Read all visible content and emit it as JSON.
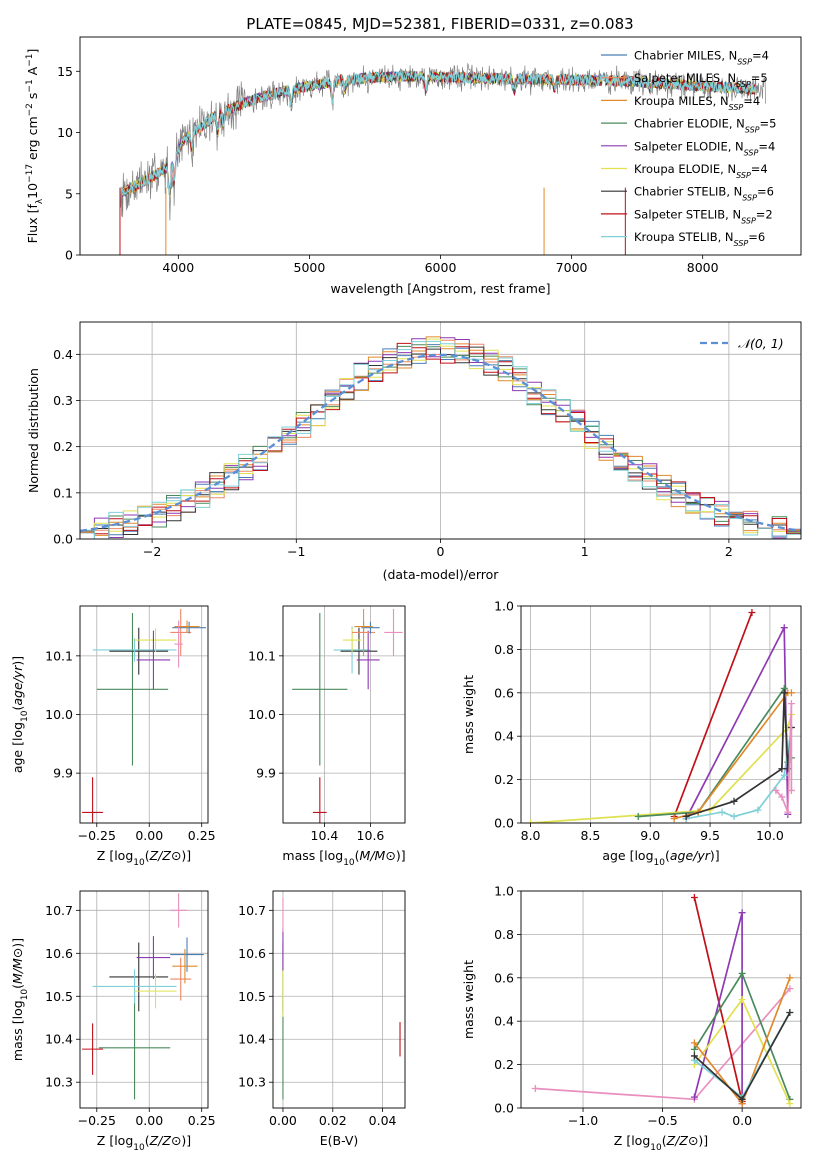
{
  "figure_title": "PLATE=0845, MJD=52381, FIBERID=0331, z=0.083",
  "chart_data": [
    {
      "id": "spectrum",
      "type": "line",
      "title": "PLATE=0845, MJD=52381, FIBERID=0331, z=0.083",
      "xlabel": "wavelength [Angstrom, rest frame]",
      "ylabel": "Flux [f_λ10^{-17} erg cm^{-2} s^{-1} A^{-1}]",
      "xlim": [
        3250,
        8750
      ],
      "ylim": [
        0,
        17.8
      ],
      "xticks": [
        4000,
        5000,
        6000,
        7000,
        8000
      ],
      "yticks": [
        0,
        5,
        10,
        15
      ],
      "grid": false,
      "legend_position": "right",
      "continuum_knots": {
        "x": [
          3550,
          3700,
          3900,
          4050,
          4300,
          4600,
          4900,
          5200,
          5500,
          5800,
          6100,
          6500,
          7000,
          7400,
          7700,
          8000,
          8300,
          8500
        ],
        "y": [
          5.0,
          5.8,
          7.0,
          9.5,
          11.5,
          12.8,
          13.6,
          14.2,
          14.5,
          14.6,
          14.5,
          14.4,
          14.3,
          14.2,
          14.0,
          13.8,
          13.6,
          13.5
        ]
      },
      "series": [
        {
          "name": "Chabrier MILES, N_{SSP}=4",
          "color": "#4a7fb5"
        },
        {
          "name": "Salpeter MILES, N_{SSP}=5",
          "color": "#ee8866"
        },
        {
          "name": "Kroupa MILES, N_{SSP}=4",
          "color": "#e08a2c"
        },
        {
          "name": "Chabrier ELODIE, N_{SSP}=5",
          "color": "#4a8a5c"
        },
        {
          "name": "Salpeter ELODIE, N_{SSP}=4",
          "color": "#8e3ab3"
        },
        {
          "name": "Kroupa ELODIE, N_{SSP}=4",
          "color": "#e0e050"
        },
        {
          "name": "Chabrier STELIB, N_{SSP}=6",
          "color": "#333333"
        },
        {
          "name": "Salpeter STELIB, N_{SSP}=2",
          "color": "#c0101a"
        },
        {
          "name": "Kroupa STELIB, N_{SSP}=6",
          "color": "#7fd0d8"
        }
      ]
    },
    {
      "id": "residuals",
      "type": "step",
      "xlabel": "(data-model)/error",
      "ylabel": "Normed distribution",
      "xlim": [
        -2.5,
        2.5
      ],
      "ylim": [
        0,
        0.47
      ],
      "xticks": [
        -2,
        -1,
        0,
        1,
        2
      ],
      "yticks": [
        0.0,
        0.1,
        0.2,
        0.3,
        0.4
      ],
      "grid": true,
      "legend_position": "top-right",
      "gaussian_label": "𝒩(0, 1)",
      "gaussian_color": "#5b8fd6",
      "bin_width": 0.1
    },
    {
      "id": "age_vs_Z",
      "type": "errorbar",
      "xlabel": "Z [log10(Z/Z⊙)]",
      "ylabel": "age  [log10(age/yr)]",
      "xlim": [
        -0.33,
        0.28
      ],
      "ylim": [
        9.815,
        10.185
      ],
      "xticks": [
        -0.25,
        0.0,
        0.25
      ],
      "yticks": [
        9.9,
        10.0,
        10.1
      ],
      "grid": true,
      "points": [
        {
          "x": -0.27,
          "y": 9.833,
          "xerr": 0.05,
          "yerr": 0.06,
          "color": "#c0101a"
        },
        {
          "x": -0.08,
          "y": 10.043,
          "xerr": 0.17,
          "yerr": 0.13,
          "color": "#4a8a5c"
        },
        {
          "x": -0.05,
          "y": 10.108,
          "xerr": 0.14,
          "yerr": 0.04,
          "color": "#333333"
        },
        {
          "x": -0.07,
          "y": 10.11,
          "xerr": 0.2,
          "yerr": 0.02,
          "color": "#7fd0d8"
        },
        {
          "x": 0.03,
          "y": 10.127,
          "xerr": 0.1,
          "yerr": 0.02,
          "color": "#e0e050"
        },
        {
          "x": 0.02,
          "y": 10.093,
          "xerr": 0.08,
          "yerr": 0.05,
          "color": "#8e3ab3"
        },
        {
          "x": 0.15,
          "y": 10.14,
          "xerr": 0.05,
          "yerr": 0.04,
          "color": "#ee8866"
        },
        {
          "x": 0.19,
          "y": 10.148,
          "xerr": 0.08,
          "yerr": 0.01,
          "color": "#4a7fb5"
        },
        {
          "x": 0.18,
          "y": 10.15,
          "xerr": 0.06,
          "yerr": 0.01,
          "color": "#e08a2c"
        },
        {
          "x": 0.14,
          "y": 10.12,
          "xerr": 0.02,
          "yerr": 0.04,
          "color": "#e88fbf"
        }
      ]
    },
    {
      "id": "age_vs_mass",
      "type": "errorbar",
      "xlabel": "mass [log10(M/M⊙)]",
      "ylabel": "",
      "xlim": [
        10.22,
        10.75
      ],
      "ylim": [
        9.815,
        10.185
      ],
      "xticks": [
        10.4,
        10.6
      ],
      "yticks": [
        9.9,
        10.0,
        10.1
      ],
      "grid": true,
      "points": [
        {
          "x": 10.38,
          "y": 9.833,
          "xerr": 0.03,
          "yerr": 0.06,
          "color": "#c0101a"
        },
        {
          "x": 10.38,
          "y": 10.043,
          "xerr": 0.12,
          "yerr": 0.13,
          "color": "#4a8a5c"
        },
        {
          "x": 10.55,
          "y": 10.108,
          "xerr": 0.08,
          "yerr": 0.04,
          "color": "#333333"
        },
        {
          "x": 10.52,
          "y": 10.11,
          "xerr": 0.08,
          "yerr": 0.04,
          "color": "#7fd0d8"
        },
        {
          "x": 10.52,
          "y": 10.127,
          "xerr": 0.04,
          "yerr": 0.02,
          "color": "#e0e050"
        },
        {
          "x": 10.59,
          "y": 10.093,
          "xerr": 0.05,
          "yerr": 0.05,
          "color": "#8e3ab3"
        },
        {
          "x": 10.57,
          "y": 10.14,
          "xerr": 0.05,
          "yerr": 0.04,
          "color": "#ee8866"
        },
        {
          "x": 10.6,
          "y": 10.148,
          "xerr": 0.04,
          "yerr": 0.01,
          "color": "#4a7fb5"
        },
        {
          "x": 10.57,
          "y": 10.15,
          "xerr": 0.04,
          "yerr": 0.01,
          "color": "#e08a2c"
        },
        {
          "x": 10.7,
          "y": 10.14,
          "xerr": 0.04,
          "yerr": 0.04,
          "color": "#e88fbf"
        }
      ]
    },
    {
      "id": "weight_vs_age",
      "type": "line",
      "xlabel": "age  [log10(age/yr)]",
      "ylabel": "mass weight",
      "xlim": [
        7.92,
        10.26
      ],
      "ylim": [
        0,
        1
      ],
      "xticks": [
        8.0,
        8.5,
        9.0,
        9.5,
        10.0
      ],
      "yticks": [
        0.0,
        0.2,
        0.4,
        0.6,
        0.8,
        1.0
      ],
      "grid": true,
      "series": [
        {
          "color": "#c0101a",
          "x": [
            9.2,
            9.85
          ],
          "y": [
            0.03,
            0.97
          ]
        },
        {
          "color": "#8e3ab3",
          "x": [
            9.3,
            10.12,
            10.15
          ],
          "y": [
            0.02,
            0.9,
            0.04
          ]
        },
        {
          "color": "#e0e050",
          "x": [
            8.0,
            9.5,
            10.15,
            10.18
          ],
          "y": [
            0.0,
            0.06,
            0.44,
            0.5
          ]
        },
        {
          "color": "#4a8a5c",
          "x": [
            8.9,
            9.4,
            10.12,
            10.15,
            10.18
          ],
          "y": [
            0.03,
            0.05,
            0.62,
            0.28,
            0.3
          ]
        },
        {
          "color": "#e08a2c",
          "x": [
            9.2,
            9.4,
            10.15,
            10.18
          ],
          "y": [
            0.02,
            0.05,
            0.6,
            0.6
          ]
        },
        {
          "color": "#7fd0d8",
          "x": [
            9.3,
            9.6,
            9.7,
            9.9,
            10.12,
            10.18
          ],
          "y": [
            0.02,
            0.05,
            0.03,
            0.06,
            0.22,
            0.44
          ]
        },
        {
          "color": "#333333",
          "x": [
            9.3,
            9.7,
            10.1,
            10.12,
            10.15,
            10.18
          ],
          "y": [
            0.03,
            0.1,
            0.25,
            0.6,
            0.25,
            0.44
          ]
        },
        {
          "color": "#e88fbf",
          "x": [
            10.05,
            10.1,
            10.15,
            10.18,
            10.18
          ],
          "y": [
            0.15,
            0.12,
            0.05,
            0.55,
            0.15
          ]
        }
      ]
    },
    {
      "id": "mass_vs_Z",
      "type": "errorbar",
      "xlabel": "Z [log10(Z/Z⊙)]",
      "ylabel": "mass [log10(M/M⊙)]",
      "xlim": [
        -0.33,
        0.28
      ],
      "ylim": [
        10.24,
        10.745
      ],
      "xticks": [
        -0.25,
        0.0,
        0.25
      ],
      "yticks": [
        10.3,
        10.4,
        10.5,
        10.6,
        10.7
      ],
      "grid": true,
      "points": [
        {
          "x": -0.27,
          "y": 10.377,
          "xerr": 0.05,
          "yerr": 0.06,
          "color": "#c0101a"
        },
        {
          "x": -0.07,
          "y": 10.38,
          "xerr": 0.17,
          "yerr": 0.12,
          "color": "#4a8a5c"
        },
        {
          "x": -0.05,
          "y": 10.545,
          "xerr": 0.14,
          "yerr": 0.08,
          "color": "#333333"
        },
        {
          "x": -0.07,
          "y": 10.523,
          "xerr": 0.2,
          "yerr": 0.04,
          "color": "#7fd0d8"
        },
        {
          "x": 0.03,
          "y": 10.512,
          "xerr": 0.1,
          "yerr": 0.04,
          "color": "#e0e050"
        },
        {
          "x": 0.02,
          "y": 10.59,
          "xerr": 0.08,
          "yerr": 0.05,
          "color": "#8e3ab3"
        },
        {
          "x": 0.15,
          "y": 10.54,
          "xerr": 0.05,
          "yerr": 0.05,
          "color": "#ee8866"
        },
        {
          "x": 0.18,
          "y": 10.597,
          "xerr": 0.08,
          "yerr": 0.04,
          "color": "#4a7fb5"
        },
        {
          "x": 0.17,
          "y": 10.57,
          "xerr": 0.06,
          "yerr": 0.04,
          "color": "#e08a2c"
        },
        {
          "x": 0.14,
          "y": 10.7,
          "xerr": 0.04,
          "yerr": 0.04,
          "color": "#e88fbf"
        }
      ]
    },
    {
      "id": "mass_vs_ebv",
      "type": "errorbar",
      "xlabel": "E(B-V)",
      "ylabel": "",
      "xlim": [
        -0.004,
        0.049
      ],
      "ylim": [
        10.24,
        10.745
      ],
      "xticks": [
        0.0,
        0.02,
        0.04
      ],
      "yticks": [
        10.3,
        10.4,
        10.5,
        10.6,
        10.7
      ],
      "grid": true,
      "points": [
        {
          "x": 0.047,
          "y": 10.4,
          "xerr": 0.0,
          "yerr": 0.04,
          "color": "#c0101a"
        },
        {
          "x": 0.0,
          "y": 10.38,
          "xerr": 0.0,
          "yerr": 0.12,
          "color": "#4a8a5c"
        },
        {
          "x": 0.0,
          "y": 10.545,
          "xerr": 0.0,
          "yerr": 0.08,
          "color": "#333333"
        },
        {
          "x": 0.0,
          "y": 10.523,
          "xerr": 0.0,
          "yerr": 0.04,
          "color": "#7fd0d8"
        },
        {
          "x": 0.0,
          "y": 10.512,
          "xerr": 0.0,
          "yerr": 0.06,
          "color": "#e0e050"
        },
        {
          "x": 0.0,
          "y": 10.61,
          "xerr": 0.0,
          "yerr": 0.05,
          "color": "#8e3ab3"
        },
        {
          "x": 0.0,
          "y": 10.69,
          "xerr": 0.0,
          "yerr": 0.04,
          "color": "#e88fbf"
        }
      ]
    },
    {
      "id": "weight_vs_Z",
      "type": "line",
      "xlabel": "Z [log10(Z/Z⊙)]",
      "ylabel": "mass weight",
      "xlim": [
        -1.39,
        0.37
      ],
      "ylim": [
        0,
        1
      ],
      "xticks": [
        -1.0,
        -0.5,
        0.0
      ],
      "yticks": [
        0.0,
        0.2,
        0.4,
        0.6,
        0.8,
        1.0
      ],
      "grid": true,
      "series": [
        {
          "color": "#e88fbf",
          "x": [
            -1.3,
            -0.3,
            0.3
          ],
          "y": [
            0.09,
            0.04,
            0.55
          ]
        },
        {
          "color": "#c0101a",
          "x": [
            -0.3,
            0.0
          ],
          "y": [
            0.97,
            0.03
          ]
        },
        {
          "color": "#8e3ab3",
          "x": [
            -0.3,
            0.0,
            0.0
          ],
          "y": [
            0.05,
            0.9,
            0.02
          ]
        },
        {
          "color": "#4a8a5c",
          "x": [
            -0.3,
            0.0,
            0.3
          ],
          "y": [
            0.27,
            0.62,
            0.04
          ]
        },
        {
          "color": "#e0e050",
          "x": [
            -0.3,
            0.0,
            0.3
          ],
          "y": [
            0.2,
            0.5,
            0.02
          ]
        },
        {
          "color": "#e08a2c",
          "x": [
            -0.3,
            0.0,
            0.3
          ],
          "y": [
            0.3,
            0.02,
            0.6
          ]
        },
        {
          "color": "#7fd0d8",
          "x": [
            -0.3,
            0.0,
            0.3
          ],
          "y": [
            0.22,
            0.05,
            0.44
          ]
        },
        {
          "color": "#333333",
          "x": [
            -0.3,
            0.0,
            0.3
          ],
          "y": [
            0.24,
            0.04,
            0.44
          ]
        }
      ]
    }
  ]
}
